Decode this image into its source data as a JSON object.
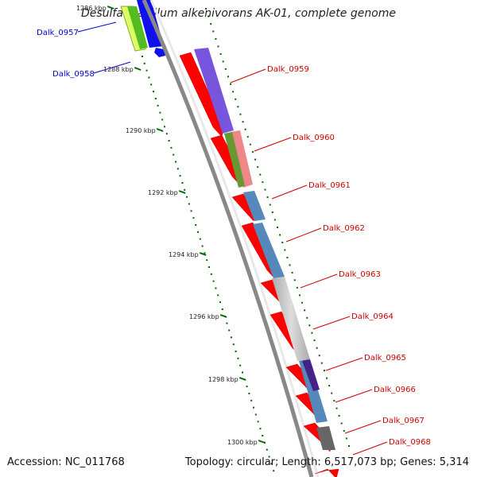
{
  "title": "Desulfatibacillum alkenivorans AK-01, complete genome",
  "accession": "Accession: NC_011768",
  "summary": "Topology: circular; Length: 6,517,073 bp; Genes: 5,314",
  "ticks": [
    "1286 kbp",
    "1288 kbp",
    "1290 kbp",
    "1292 kbp",
    "1294 kbp",
    "1296 kbp",
    "1298 kbp",
    "1300 kbp"
  ],
  "reverse_labels": [
    "Dalk_0957",
    "Dalk_0958"
  ],
  "forward_labels": [
    "Dalk_0959",
    "Dalk_0960",
    "Dalk_0961",
    "Dalk_0962",
    "Dalk_0963",
    "Dalk_0964",
    "Dalk_0965",
    "Dalk_0966",
    "Dalk_0967",
    "Dalk_0968"
  ],
  "colors": {
    "forward_label": "#cc0000",
    "reverse_label": "#0000cc",
    "cds": "#ff0000",
    "backbone": "#888888",
    "tick_dot": "#006600"
  }
}
